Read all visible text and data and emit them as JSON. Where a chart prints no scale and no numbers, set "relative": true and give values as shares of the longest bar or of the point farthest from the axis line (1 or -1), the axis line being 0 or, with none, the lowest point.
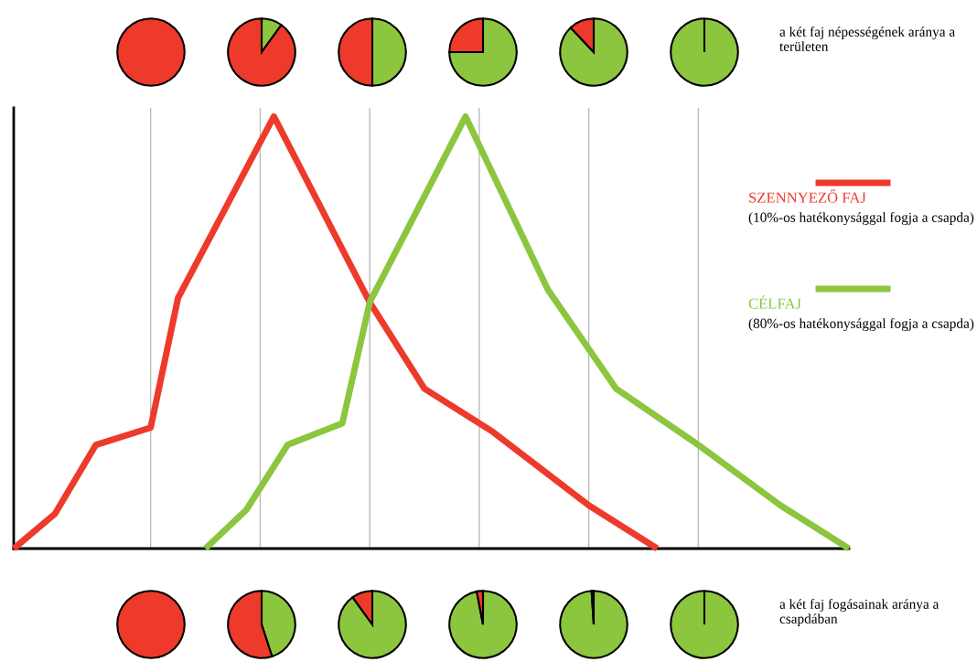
{
  "chart_data": [
    {
      "type": "pie",
      "categories": [
        null,
        null
      ],
      "values": [
        0,
        100
      ],
      "colors": [
        "#8cc63f",
        "#ee3a2b"
      ]
    },
    {
      "type": "pie",
      "categories": [
        null,
        null
      ],
      "values": [
        10,
        90
      ],
      "colors": [
        "#8cc63f",
        "#ee3a2b"
      ]
    },
    {
      "type": "pie",
      "categories": [
        null,
        null
      ],
      "values": [
        50,
        50
      ],
      "colors": [
        "#8cc63f",
        "#ee3a2b"
      ]
    },
    {
      "type": "pie",
      "categories": [
        null,
        null
      ],
      "values": [
        75,
        25
      ],
      "colors": [
        "#8cc63f",
        "#ee3a2b"
      ]
    },
    {
      "type": "pie",
      "categories": [
        null,
        null
      ],
      "values": [
        88,
        12
      ],
      "colors": [
        "#8cc63f",
        "#ee3a2b"
      ]
    },
    {
      "type": "pie",
      "categories": [
        null,
        null
      ],
      "values": [
        100,
        0
      ],
      "colors": [
        "#8cc63f",
        "#ee3a2b"
      ],
      "annotations": [
        "a két faj népességének aránya a területen"
      ]
    },
    {
      "type": "line",
      "relative": true,
      "categories": [
        null,
        null,
        null,
        null,
        null,
        null,
        null,
        null,
        null,
        null,
        null,
        null,
        null,
        null,
        null,
        null,
        null,
        null,
        null,
        null,
        null,
        null,
        null,
        null,
        null,
        null,
        null,
        null,
        null,
        null,
        null,
        null,
        null,
        null,
        null,
        null,
        null,
        null,
        null,
        null,
        null,
        null,
        null,
        null,
        null,
        null,
        null,
        null,
        null,
        null,
        null,
        null,
        null,
        null,
        null,
        null,
        null,
        null,
        null,
        null,
        null,
        null
      ],
      "grid": "x",
      "legend": "right",
      "annotations": [
        "(10%-os hatékonysággal fogja a csapda)",
        "(80%-os hatékonysággal fogja a csapda)"
      ],
      "series": [
        {
          "name": "SZENNYEZŐ FAJ",
          "color": "#ee3a2b",
          "values": [
            0,
            null,
            null,
            0.08,
            null,
            null,
            0.24,
            null,
            null,
            null,
            0.28,
            null,
            0.58,
            null,
            null,
            null,
            null,
            null,
            null,
            1,
            null,
            null,
            null,
            null,
            null,
            null,
            0.57,
            null,
            null,
            null,
            0.37,
            null,
            null,
            null,
            null,
            0.27,
            null,
            null,
            null,
            null,
            null,
            null,
            0.1,
            null,
            null,
            null,
            null,
            0,
            null,
            null,
            null,
            null,
            null,
            null,
            null,
            null,
            null,
            null,
            null,
            null,
            null,
            null
          ]
        },
        {
          "name": "CÉLFAJ",
          "color": "#8cc63f",
          "values": [
            null,
            null,
            null,
            null,
            null,
            null,
            null,
            null,
            null,
            null,
            null,
            null,
            null,
            null,
            0,
            null,
            null,
            0.09,
            null,
            null,
            0.24,
            null,
            null,
            null,
            0.29,
            null,
            0.57,
            null,
            null,
            null,
            null,
            null,
            null,
            1,
            null,
            null,
            null,
            null,
            null,
            0.6,
            null,
            null,
            null,
            null,
            0.37,
            null,
            null,
            null,
            null,
            null,
            0.24,
            null,
            null,
            null,
            null,
            null,
            0.1,
            null,
            null,
            null,
            null,
            0
          ]
        }
      ]
    },
    {
      "type": "pie",
      "categories": [
        null,
        null
      ],
      "values": [
        0,
        100
      ],
      "colors": [
        "#8cc63f",
        "#ee3a2b"
      ]
    },
    {
      "type": "pie",
      "categories": [
        null,
        null
      ],
      "values": [
        45,
        55
      ],
      "colors": [
        "#8cc63f",
        "#ee3a2b"
      ]
    },
    {
      "type": "pie",
      "categories": [
        null,
        null
      ],
      "values": [
        90,
        10
      ],
      "colors": [
        "#8cc63f",
        "#ee3a2b"
      ]
    },
    {
      "type": "pie",
      "categories": [
        null,
        null
      ],
      "values": [
        97,
        3
      ],
      "colors": [
        "#8cc63f",
        "#ee3a2b"
      ]
    },
    {
      "type": "pie",
      "categories": [
        null,
        null
      ],
      "values": [
        99,
        1
      ],
      "colors": [
        "#8cc63f",
        "#ee3a2b"
      ]
    },
    {
      "type": "pie",
      "categories": [
        null,
        null
      ],
      "values": [
        100,
        0
      ],
      "colors": [
        "#8cc63f",
        "#ee3a2b"
      ],
      "annotations": [
        "a két faj fogásainak aránya a csapdában"
      ]
    }
  ]
}
